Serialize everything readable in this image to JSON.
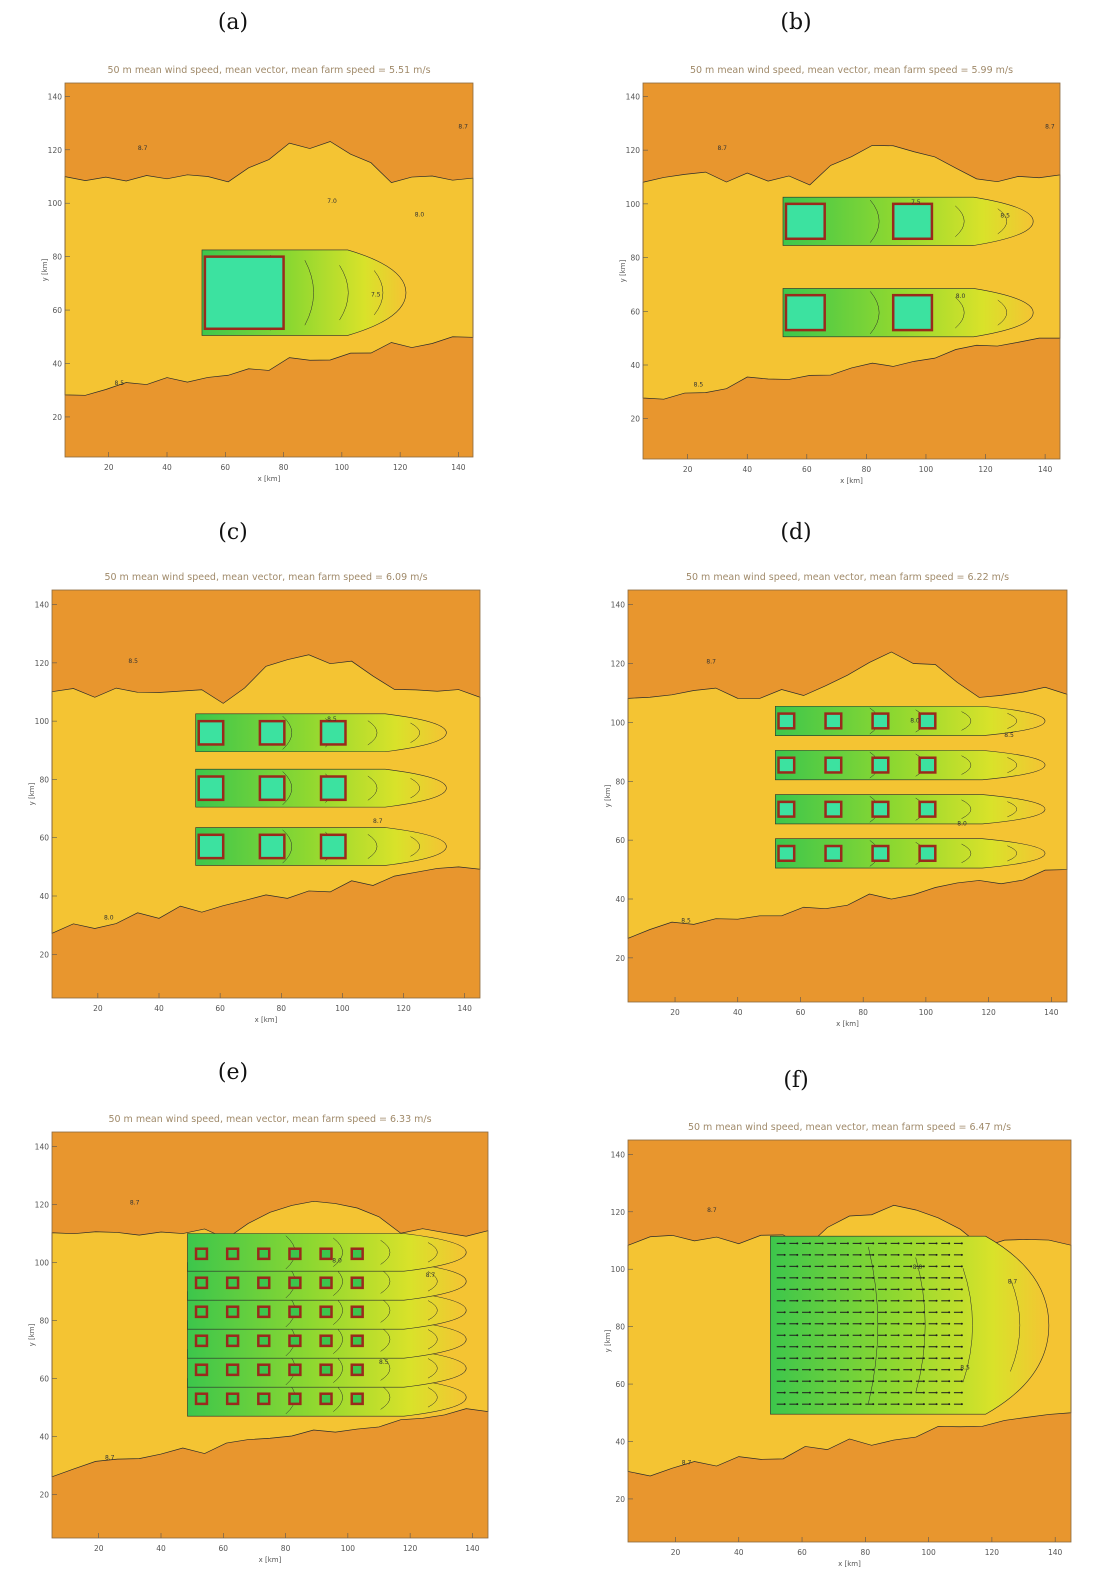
{
  "chart_data": [
    {
      "type": "heatmap",
      "panel": "(a)",
      "title": "50 m mean wind speed, mean vector, mean farm speed =  5.51 m/s",
      "xlabel": "x [km]",
      "ylabel": "y [km]",
      "xlim": [
        5,
        145
      ],
      "ylim": [
        5,
        145
      ],
      "xticks": [
        20,
        40,
        60,
        80,
        100,
        120,
        140
      ],
      "yticks": [
        20,
        40,
        60,
        80,
        100,
        120,
        140
      ],
      "contour_labels": [
        "8.7",
        "8.5",
        "7.0",
        "7.5",
        "8.0",
        "8.7"
      ],
      "farm_blocks": [
        {
          "x0": 53,
          "x1": 80,
          "y0": 53,
          "y1": 80
        }
      ],
      "wake_end_km": 122,
      "vectors": false
    },
    {
      "type": "heatmap",
      "panel": "(b)",
      "title": "50 m mean wind speed, mean vector, mean farm speed =  5.99 m/s",
      "xlabel": "x [km]",
      "ylabel": "y [km]",
      "xlim": [
        5,
        145
      ],
      "ylim": [
        5,
        145
      ],
      "xticks": [
        20,
        40,
        60,
        80,
        100,
        120,
        140
      ],
      "yticks": [
        20,
        40,
        60,
        80,
        100,
        120,
        140
      ],
      "contour_labels": [
        "8.7",
        "8.5",
        "7.5",
        "8.0",
        "8.5",
        "8.7"
      ],
      "farm_blocks": [
        {
          "x0": 53,
          "x1": 66,
          "y0": 87,
          "y1": 100
        },
        {
          "x0": 89,
          "x1": 102,
          "y0": 87,
          "y1": 100
        },
        {
          "x0": 53,
          "x1": 66,
          "y0": 53,
          "y1": 66
        },
        {
          "x0": 89,
          "x1": 102,
          "y0": 53,
          "y1": 66
        }
      ],
      "wake_end_km": 136,
      "vectors": false
    },
    {
      "type": "heatmap",
      "panel": "(c)",
      "title": "50 m mean wind speed, mean vector, mean farm speed =  6.09 m/s",
      "xlabel": "x [km]",
      "ylabel": "y [km]",
      "xlim": [
        5,
        145
      ],
      "ylim": [
        5,
        145
      ],
      "xticks": [
        20,
        40,
        60,
        80,
        100,
        120,
        140
      ],
      "yticks": [
        20,
        40,
        60,
        80,
        100,
        120,
        140
      ],
      "contour_labels": [
        "8.5",
        "8.0",
        "8.5",
        "8.7"
      ],
      "farm_blocks": [
        {
          "x0": 53,
          "x1": 61,
          "y0": 92,
          "y1": 100
        },
        {
          "x0": 73,
          "x1": 81,
          "y0": 92,
          "y1": 100
        },
        {
          "x0": 93,
          "x1": 101,
          "y0": 92,
          "y1": 100
        },
        {
          "x0": 53,
          "x1": 61,
          "y0": 73,
          "y1": 81
        },
        {
          "x0": 73,
          "x1": 81,
          "y0": 73,
          "y1": 81
        },
        {
          "x0": 93,
          "x1": 101,
          "y0": 73,
          "y1": 81
        },
        {
          "x0": 53,
          "x1": 61,
          "y0": 53,
          "y1": 61
        },
        {
          "x0": 73,
          "x1": 81,
          "y0": 53,
          "y1": 61
        },
        {
          "x0": 93,
          "x1": 101,
          "y0": 53,
          "y1": 61
        }
      ],
      "wake_end_km": 134,
      "vectors": false
    },
    {
      "type": "heatmap",
      "panel": "(d)",
      "title": "50 m mean wind speed, mean vector, mean farm speed =  6.22 m/s",
      "xlabel": "x [km]",
      "ylabel": "y [km]",
      "xlim": [
        5,
        145
      ],
      "ylim": [
        5,
        145
      ],
      "xticks": [
        20,
        40,
        60,
        80,
        100,
        120,
        140
      ],
      "yticks": [
        20,
        40,
        60,
        80,
        100,
        120,
        140
      ],
      "contour_labels": [
        "8.7",
        "8.5",
        "8.0",
        "8.0",
        "8.5"
      ],
      "farm_blocks": [
        {
          "x0": 53,
          "x1": 58,
          "y0": 98,
          "y1": 103
        },
        {
          "x0": 68,
          "x1": 73,
          "y0": 98,
          "y1": 103
        },
        {
          "x0": 83,
          "x1": 88,
          "y0": 98,
          "y1": 103
        },
        {
          "x0": 98,
          "x1": 103,
          "y0": 98,
          "y1": 103
        },
        {
          "x0": 53,
          "x1": 58,
          "y0": 83,
          "y1": 88
        },
        {
          "x0": 68,
          "x1": 73,
          "y0": 83,
          "y1": 88
        },
        {
          "x0": 83,
          "x1": 88,
          "y0": 83,
          "y1": 88
        },
        {
          "x0": 98,
          "x1": 103,
          "y0": 83,
          "y1": 88
        },
        {
          "x0": 53,
          "x1": 58,
          "y0": 68,
          "y1": 73
        },
        {
          "x0": 68,
          "x1": 73,
          "y0": 68,
          "y1": 73
        },
        {
          "x0": 83,
          "x1": 88,
          "y0": 68,
          "y1": 73
        },
        {
          "x0": 98,
          "x1": 103,
          "y0": 68,
          "y1": 73
        },
        {
          "x0": 53,
          "x1": 58,
          "y0": 53,
          "y1": 58
        },
        {
          "x0": 68,
          "x1": 73,
          "y0": 53,
          "y1": 58
        },
        {
          "x0": 83,
          "x1": 88,
          "y0": 53,
          "y1": 58
        },
        {
          "x0": 98,
          "x1": 103,
          "y0": 53,
          "y1": 58
        }
      ],
      "wake_end_km": 138,
      "vectors": false
    },
    {
      "type": "heatmap",
      "panel": "(e)",
      "title": "50 m mean wind speed, mean vector, mean farm speed =  6.33 m/s",
      "xlabel": "x [km]",
      "ylabel": "y [km]",
      "xlim": [
        5,
        145
      ],
      "ylim": [
        5,
        145
      ],
      "xticks": [
        20,
        40,
        60,
        80,
        100,
        120,
        140
      ],
      "yticks": [
        20,
        40,
        60,
        80,
        100,
        120,
        140
      ],
      "contour_labels": [
        "8.7",
        "8.7",
        "8.0",
        "8.5",
        "8.7"
      ],
      "farm_grid": {
        "xs": [
          53,
          63,
          73,
          83,
          93,
          103
        ],
        "ys": [
          53,
          63,
          73,
          83,
          93,
          103
        ],
        "size": 3.5
      },
      "wake_end_km": 138,
      "vectors": false
    },
    {
      "type": "heatmap",
      "panel": "(f)",
      "title": "50 m mean wind speed, mean vector, mean farm speed =  6.47 m/s",
      "xlabel": "x [km]",
      "ylabel": "y [km]",
      "xlim": [
        5,
        145
      ],
      "ylim": [
        5,
        145
      ],
      "xticks": [
        20,
        40,
        60,
        80,
        100,
        120,
        140
      ],
      "yticks": [
        20,
        40,
        60,
        80,
        100,
        120,
        140
      ],
      "contour_labels": [
        "8.7",
        "8.7",
        "8.0",
        "8.5",
        "8.7"
      ],
      "farm_region": {
        "x0": 51,
        "x1": 110,
        "y0": 52,
        "y1": 109
      },
      "wake_end_km": 138,
      "vectors": true
    }
  ],
  "colors": {
    "background": "#e8962e",
    "ambient": "#f4c433",
    "wake_light": "#d9e22a",
    "wake_mid": "#8fd830",
    "wake_dark": "#3cc64c",
    "farm_core": "#3ce2a0",
    "farm_outline": "#9a2a1c",
    "contour": "#2b2b2b"
  }
}
